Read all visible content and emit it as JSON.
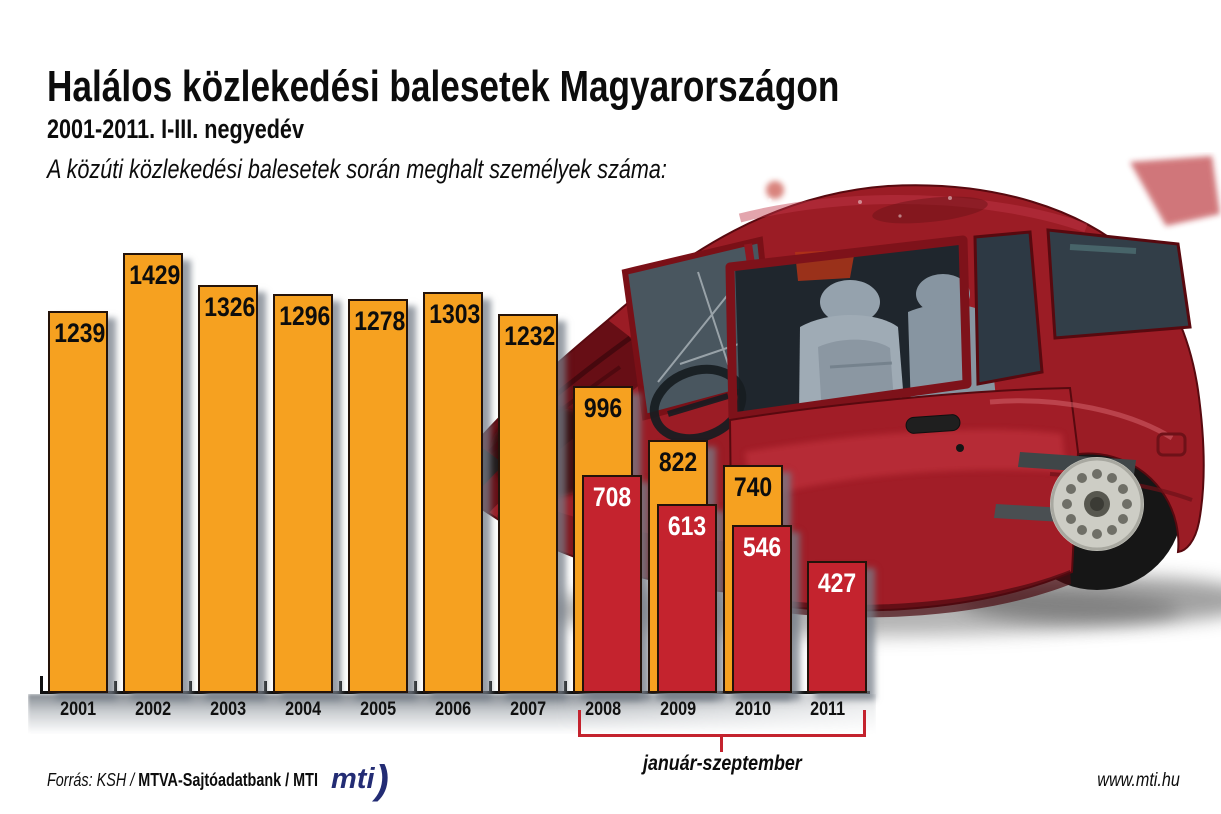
{
  "header": {
    "title": "Halálos közlekedési balesetek Magyarországon",
    "subtitle": "2001-2011. I-III. negyedév",
    "description": "A közúti közlekedési balesetek során meghalt személyek száma:"
  },
  "chart_data": {
    "type": "bar",
    "categories": [
      "2001",
      "2002",
      "2003",
      "2004",
      "2005",
      "2006",
      "2007",
      "2008",
      "2009",
      "2010",
      "2011"
    ],
    "series": [
      {
        "id": "orange-full-period",
        "color": "#F6A120",
        "label_color": "#0d0d0d",
        "values": [
          1239,
          1429,
          1326,
          1296,
          1278,
          1303,
          1232,
          996,
          822,
          740,
          null
        ]
      },
      {
        "id": "red-january-september",
        "color": "#C4232E",
        "label_color": "#ffffff",
        "values": [
          null,
          null,
          null,
          null,
          null,
          null,
          null,
          708,
          613,
          546,
          427
        ]
      }
    ],
    "ylim": [
      0,
      1500
    ],
    "grid": false,
    "legend": "none",
    "value_labels": "inside-top of each bar",
    "annotation": {
      "label": "január-szeptember",
      "span": [
        "2008",
        "2011"
      ],
      "color": "#C4232E"
    }
  },
  "footer": {
    "source_prefix": "Forrás: KSH / ",
    "source_bold": "MTVA-Sajtóadatbank / MTI",
    "logo_text": "mti",
    "logo_paren": ")",
    "website": "www.mti.hu"
  },
  "illustration": {
    "description": "crashed dark-red hatchback with open driver door",
    "body_color": "#9B1C25"
  }
}
